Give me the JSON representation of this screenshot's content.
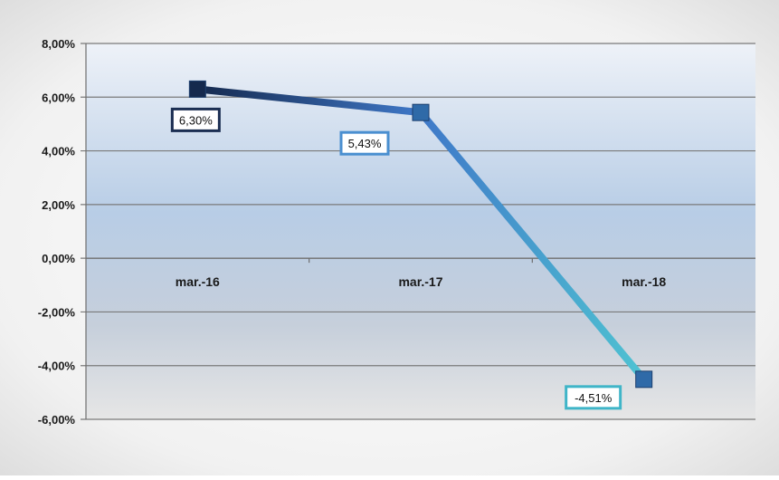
{
  "chart_data": {
    "type": "line",
    "categories": [
      "mar.-16",
      "mar.-17",
      "mar.-18"
    ],
    "values": [
      6.3,
      5.43,
      -4.51
    ],
    "data_labels": [
      "6,30%",
      "5,43%",
      "-4,51%"
    ],
    "y_tick_labels": [
      "8,00%",
      "6,00%",
      "4,00%",
      "2,00%",
      "0,00%",
      "-2,00%",
      "-4,00%",
      "-6,00%"
    ],
    "y_ticks": [
      8,
      6,
      4,
      2,
      0,
      -2,
      -4,
      -6
    ],
    "ylim": [
      -6,
      8
    ],
    "grid": true,
    "legend": "none",
    "colors": {
      "start": "#15294d",
      "mid": "#3f78c8",
      "end": "#4fc3d2",
      "marker": "#2f6aa8",
      "grid": "#7a7a7a",
      "label_border_1": "#1b2e52",
      "label_border_2": "#4a8fd0",
      "label_border_3": "#3fb5c8"
    }
  }
}
